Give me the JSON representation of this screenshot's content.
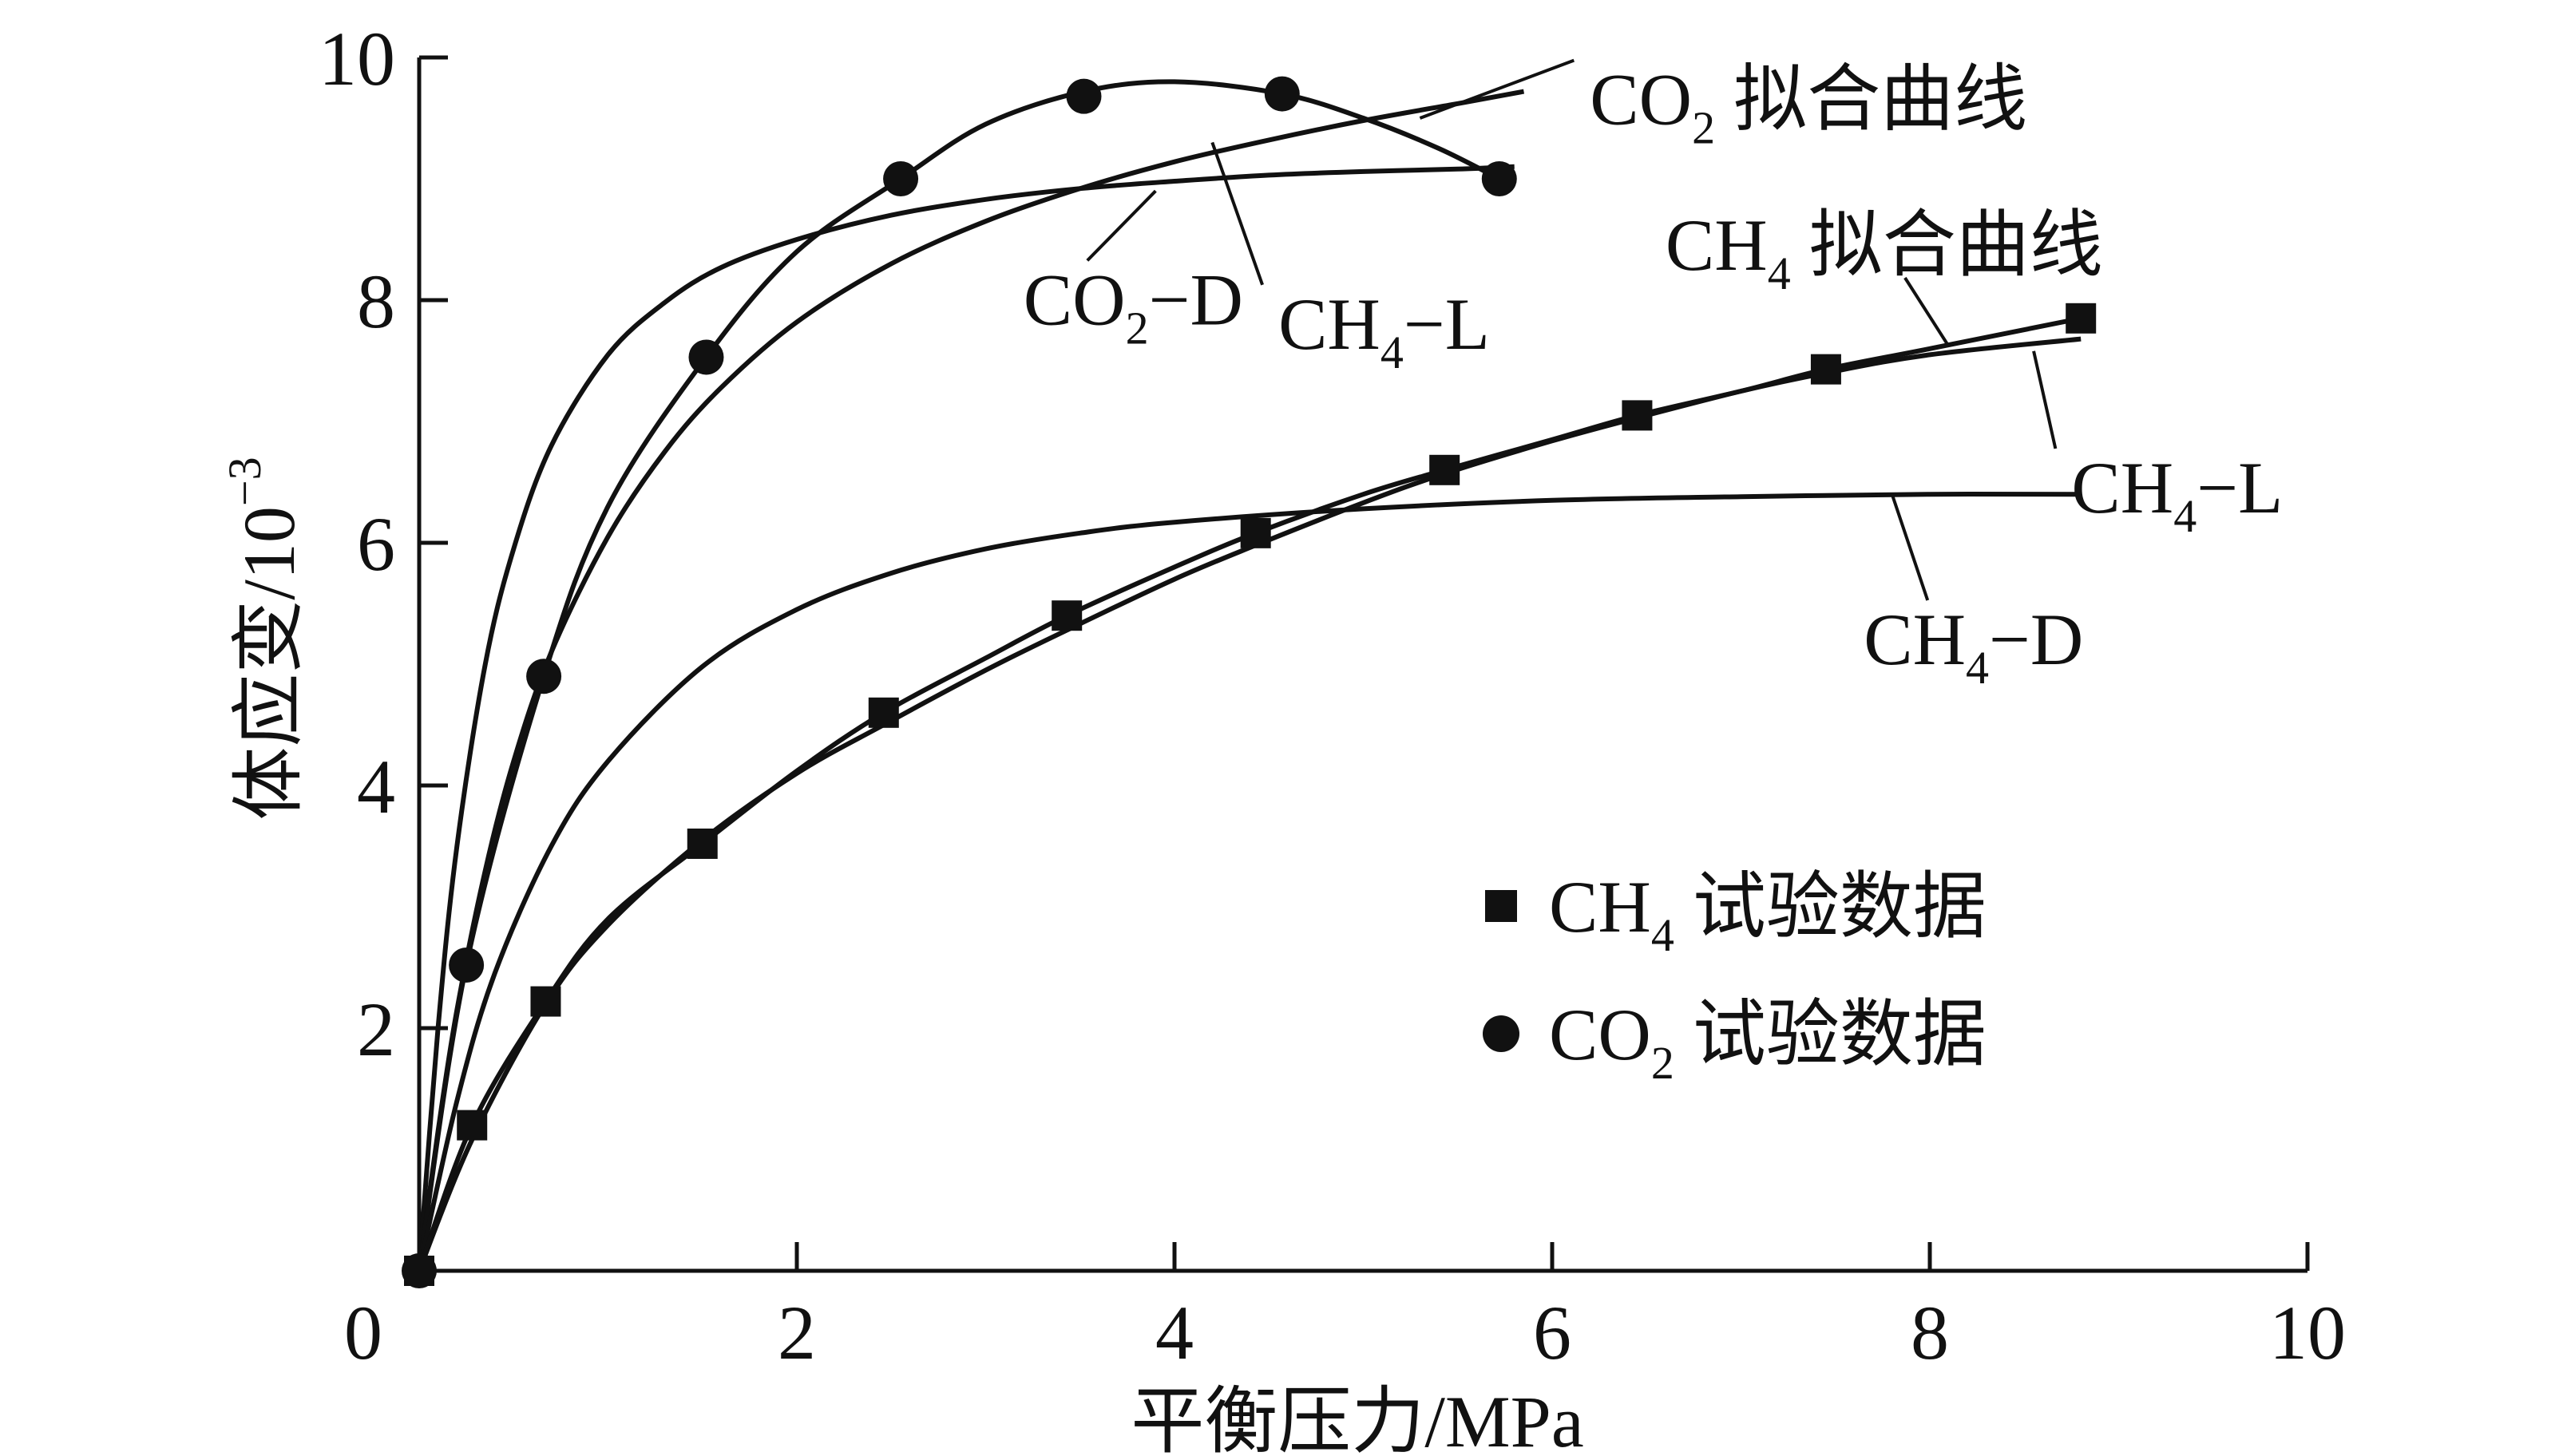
{
  "chart_data": {
    "type": "scatter",
    "title": "",
    "xlabel": "平衡压力/MPa",
    "ylabel": "体应变/10",
    "ylabel_exponent": "−3",
    "xlim": [
      0,
      10
    ],
    "ylim": [
      0,
      10
    ],
    "x_ticks": [
      0,
      2,
      4,
      6,
      8,
      10
    ],
    "x_tick_labels": [
      "0",
      "2",
      "4",
      "6",
      "8",
      "10"
    ],
    "y_ticks": [
      2,
      4,
      6,
      8,
      10
    ],
    "y_tick_labels": [
      "2",
      "4",
      "6",
      "8",
      "10"
    ],
    "grid": false,
    "legend_position": "bottom-right",
    "series": [
      {
        "name": "CH4 试验数据",
        "legend_main": "CH",
        "legend_sub": "4",
        "legend_rest": " 试验数据",
        "marker": "square",
        "x": [
          0.0,
          0.28,
          0.67,
          1.5,
          2.46,
          3.43,
          4.43,
          5.43,
          6.45,
          7.45,
          8.8
        ],
        "y": [
          0.0,
          1.2,
          2.22,
          3.52,
          4.6,
          5.4,
          6.08,
          6.6,
          7.05,
          7.43,
          7.85
        ]
      },
      {
        "name": "CO2 试验数据",
        "legend_main": "CO",
        "legend_sub": "2",
        "legend_rest": " 试验数据",
        "marker": "circle",
        "x": [
          0.0,
          0.25,
          0.66,
          1.52,
          2.55,
          3.52,
          4.57,
          5.72
        ],
        "y": [
          0.0,
          2.52,
          4.9,
          7.53,
          9.0,
          9.68,
          9.7,
          9.0
        ]
      }
    ],
    "curves": [
      {
        "name": "CO2-D",
        "x": [
          0,
          0.1,
          0.2,
          0.35,
          0.5,
          0.7,
          1.0,
          1.3,
          1.6,
          2.0,
          2.5,
          3.0,
          3.5,
          4.0,
          4.5,
          5.0,
          5.5,
          5.8
        ],
        "y": [
          0,
          2.0,
          3.5,
          5.0,
          5.95,
          6.8,
          7.55,
          7.98,
          8.27,
          8.5,
          8.7,
          8.83,
          8.92,
          8.98,
          9.03,
          9.06,
          9.08,
          9.1
        ]
      },
      {
        "name": "CH4-L (CO2)",
        "x": [
          0,
          0.1,
          0.2,
          0.35,
          0.5,
          0.7,
          1.0,
          1.3,
          1.6,
          2.0,
          2.5,
          3.0,
          3.5,
          4.0,
          4.5,
          5.0,
          5.5,
          5.85
        ],
        "y": [
          0,
          1.15,
          2.15,
          3.3,
          4.2,
          5.1,
          6.05,
          6.75,
          7.28,
          7.82,
          8.3,
          8.65,
          8.92,
          9.14,
          9.32,
          9.48,
          9.62,
          9.72
        ]
      },
      {
        "name": "CO2 拟合曲线",
        "x": [
          0,
          0.25,
          0.66,
          1.0,
          1.52,
          2.0,
          2.55,
          3.0,
          3.52,
          4.0,
          4.57,
          5.0,
          5.4,
          5.72
        ],
        "y": [
          0,
          2.52,
          4.9,
          6.3,
          7.53,
          8.4,
          9.0,
          9.45,
          9.72,
          9.8,
          9.7,
          9.5,
          9.25,
          9.0
        ]
      },
      {
        "name": "CH4-D",
        "x": [
          0,
          0.2,
          0.4,
          0.7,
          1.0,
          1.5,
          2.0,
          2.5,
          3.0,
          3.5,
          4.0,
          5.0,
          6.0,
          7.0,
          8.0,
          8.8
        ],
        "y": [
          0,
          1.4,
          2.45,
          3.5,
          4.2,
          4.98,
          5.45,
          5.75,
          5.95,
          6.08,
          6.17,
          6.28,
          6.35,
          6.38,
          6.4,
          6.4
        ]
      },
      {
        "name": "CH4-L",
        "x": [
          0,
          0.28,
          0.67,
          1.0,
          1.5,
          2.0,
          2.46,
          3.0,
          3.43,
          4.0,
          4.43,
          5.0,
          5.43,
          6.0,
          6.45,
          7.0,
          7.45,
          8.0,
          8.8
        ],
        "y": [
          0,
          1.08,
          2.2,
          2.85,
          3.55,
          4.1,
          4.5,
          4.95,
          5.28,
          5.7,
          5.98,
          6.33,
          6.57,
          6.84,
          7.03,
          7.25,
          7.4,
          7.55,
          7.68
        ]
      },
      {
        "name": "CH4 拟合曲线",
        "x": [
          0,
          0.28,
          0.67,
          1.0,
          1.5,
          2.0,
          2.46,
          3.0,
          3.43,
          4.0,
          4.43,
          5.0,
          5.43,
          6.0,
          6.45,
          7.0,
          7.45,
          8.0,
          8.8
        ],
        "y": [
          0,
          1.2,
          2.22,
          2.9,
          3.52,
          4.12,
          4.6,
          5.05,
          5.4,
          5.8,
          6.08,
          6.4,
          6.6,
          6.85,
          7.05,
          7.25,
          7.43,
          7.6,
          7.85
        ]
      }
    ],
    "annotations": [
      {
        "main": "CO",
        "sub": "2",
        "rest": " 拟合曲线",
        "x": 6.2,
        "y": 9.45,
        "anchor_x": 5.3,
        "anchor_y": 9.5
      },
      {
        "main": "CO",
        "sub": "2",
        "rest": "−D",
        "x": 3.2,
        "y": 7.8,
        "anchor_x": 3.9,
        "anchor_y": 8.9
      },
      {
        "main": "CH",
        "sub": "4",
        "rest": "−L",
        "x": 4.55,
        "y": 7.6,
        "anchor_x": 4.2,
        "anchor_y": 9.3
      },
      {
        "main": "CH",
        "sub": "4",
        "rest": " 拟合曲线",
        "x": 6.6,
        "y": 8.25,
        "anchor_x": 8.1,
        "anchor_y": 7.62
      },
      {
        "main": "CH",
        "sub": "4",
        "rest": "−L",
        "x": 8.75,
        "y": 6.25,
        "anchor_x": 8.55,
        "anchor_y": 7.58
      },
      {
        "main": "CH",
        "sub": "4",
        "rest": "−D",
        "x": 7.65,
        "y": 5.0,
        "anchor_x": 7.8,
        "anchor_y": 6.4
      }
    ]
  }
}
